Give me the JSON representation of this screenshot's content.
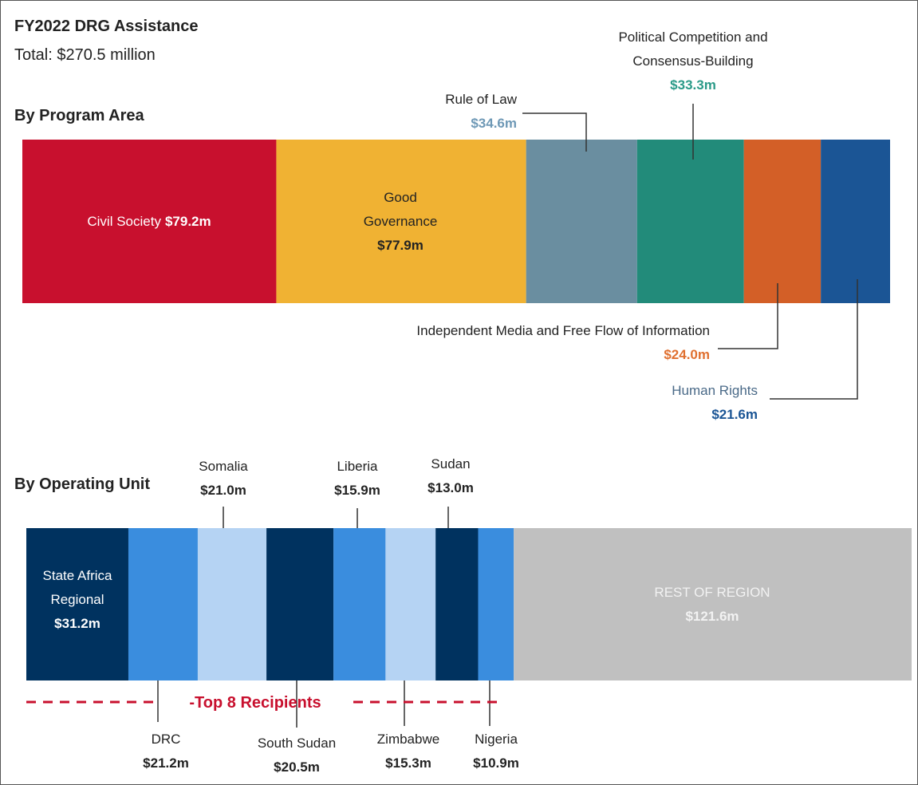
{
  "header": {
    "title": "FY2022 DRG Assistance",
    "subtitle": "Total: $270.5 million"
  },
  "chart_data": [
    {
      "type": "stacked-bar",
      "title": "By Program Area",
      "categories": [
        "Civil Society",
        "Good Governance",
        "Rule of Law",
        "Political Competition and Consensus-Building",
        "Independent Media and Free Flow of Information",
        "Human Rights"
      ],
      "values": [
        79.2,
        77.9,
        34.6,
        33.3,
        24.0,
        21.6
      ],
      "value_labels": [
        "$79.2m",
        "$77.9m",
        "$34.6m",
        "$33.3m",
        "$24.0m",
        "$21.6m"
      ],
      "colors": [
        "#c8102e",
        "#f0b233",
        "#6a8ea0",
        "#228b7a",
        "#d35f27",
        "#1b5595"
      ]
    },
    {
      "type": "stacked-bar",
      "title": "By Operating Unit",
      "categories": [
        "State Africa Regional",
        "DRC",
        "Somalia",
        "South Sudan",
        "Liberia",
        "Zimbabwe",
        "Sudan",
        "Nigeria",
        "REST OF REGION"
      ],
      "values": [
        31.2,
        21.2,
        21.0,
        20.5,
        15.9,
        15.3,
        13.0,
        10.9,
        121.6
      ],
      "value_labels": [
        "$31.2m",
        "$21.2m",
        "$21.0m",
        "$20.5m",
        "$15.9m",
        "$15.3m",
        "$13.0m",
        "$10.9m",
        "$121.6m"
      ],
      "colors": [
        "#00325f",
        "#3a8dde",
        "#b5d3f3",
        "#00325f",
        "#3a8dde",
        "#b5d3f3",
        "#00325f",
        "#3a8dde",
        "#c0c0c0"
      ],
      "annotation": "-Top 8 Recipients"
    }
  ]
}
